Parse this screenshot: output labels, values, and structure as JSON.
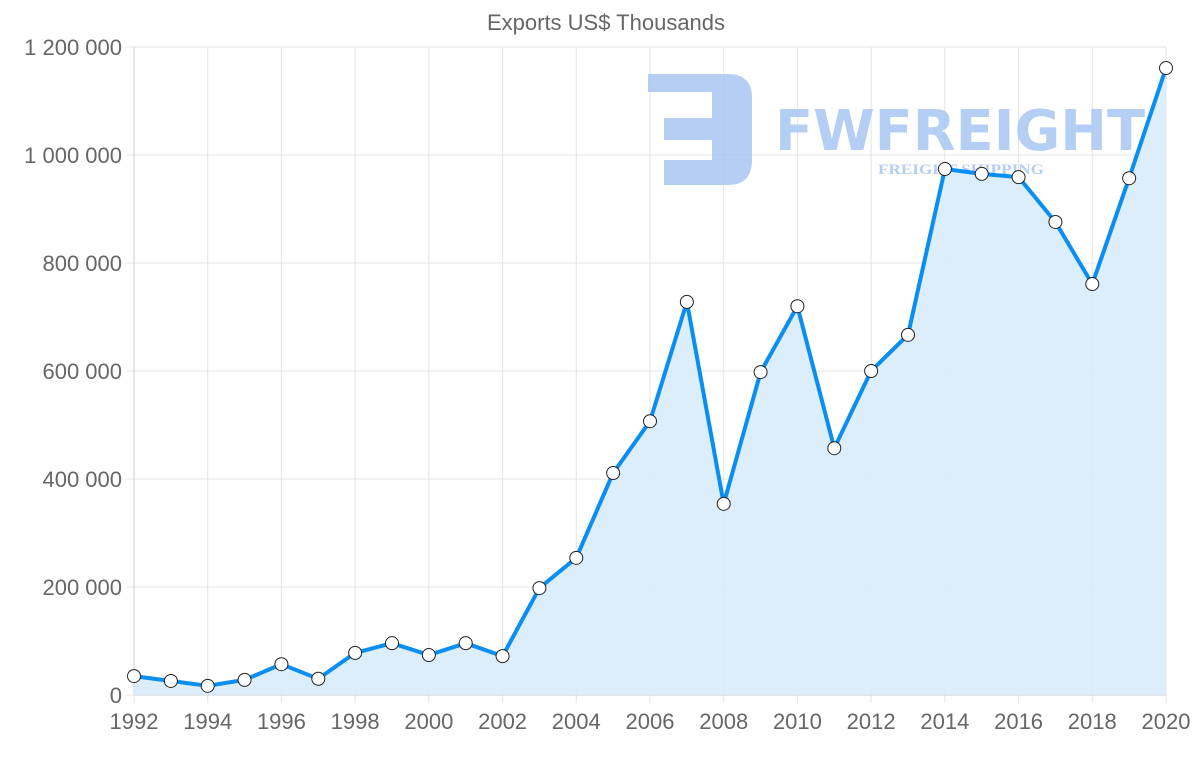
{
  "watermark": {
    "brand": "FWFREIGHT",
    "tagline": "FREIGHT SHIPPING"
  },
  "colors": {
    "line": "#0a8ef2",
    "fill": "#d8ebfc",
    "grid": "#e4e4e4",
    "watermark": "#a9c6f2"
  },
  "chart_data": {
    "type": "line",
    "title": "Exports US$ Thousands",
    "xlabel": "",
    "ylabel": "",
    "x": [
      1992,
      1993,
      1994,
      1995,
      1996,
      1997,
      1998,
      1999,
      2000,
      2001,
      2002,
      2003,
      2004,
      2005,
      2006,
      2007,
      2008,
      2009,
      2010,
      2011,
      2012,
      2013,
      2014,
      2015,
      2016,
      2017,
      2018,
      2019,
      2020
    ],
    "series": [
      {
        "name": "Exports US$ Thousands",
        "values": [
          35000,
          26000,
          17000,
          28000,
          57000,
          30000,
          78000,
          96000,
          74000,
          96000,
          72000,
          198000,
          254000,
          411000,
          507000,
          728000,
          354000,
          598000,
          720000,
          457000,
          600000,
          667000,
          974000,
          965000,
          959000,
          876000,
          761000,
          957000,
          1161000
        ]
      }
    ],
    "xlim": [
      1992,
      2020
    ],
    "ylim": [
      0,
      1200000
    ],
    "x_ticks": [
      "1992",
      "1994",
      "1996",
      "1998",
      "2000",
      "2002",
      "2004",
      "2006",
      "2008",
      "2010",
      "2012",
      "2014",
      "2016",
      "2018",
      "2020"
    ],
    "y_ticks": [
      "0",
      "200 000",
      "400 000",
      "600 000",
      "800 000",
      "1 000 000",
      "1 200 000"
    ],
    "grid": true,
    "legend": "none",
    "filled": true
  }
}
